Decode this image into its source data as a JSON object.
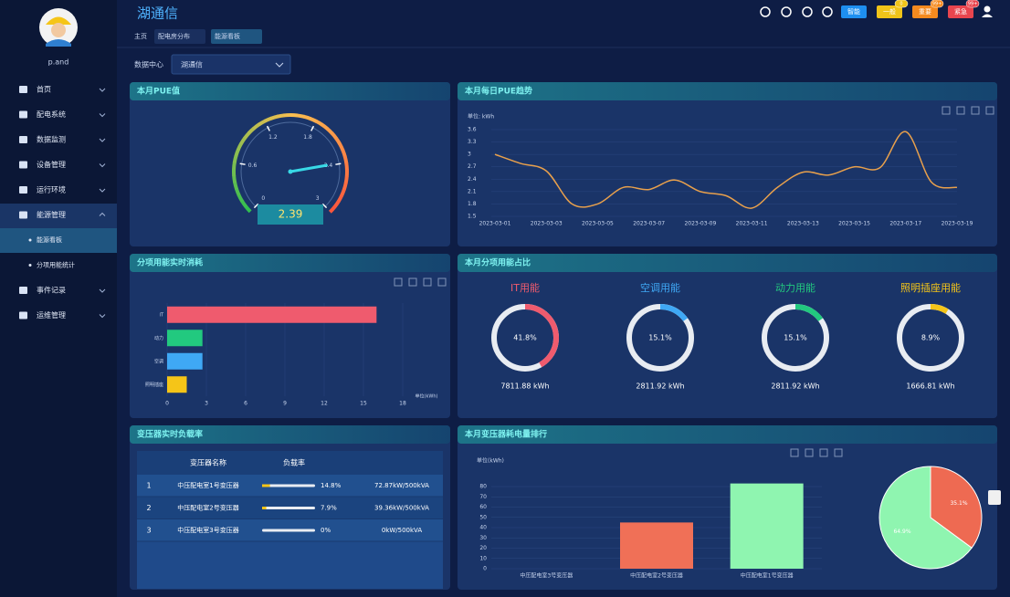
{
  "header": {
    "title": "湖通信",
    "tabs": [
      "主页",
      "配电房分布",
      "能源看板"
    ],
    "buttons": [
      {
        "label": "智能"
      },
      {
        "label": "一般",
        "badge": "0"
      },
      {
        "label": "重要",
        "badge": "99+"
      },
      {
        "label": "紧急",
        "badge": "99+"
      }
    ]
  },
  "sidebar": {
    "user": "p.and",
    "menu": [
      {
        "label": "首页"
      },
      {
        "label": "配电系统"
      },
      {
        "label": "数据监测"
      },
      {
        "label": "设备管理"
      },
      {
        "label": "运行环境"
      },
      {
        "label": "能源管理",
        "children": [
          "能源看板",
          "分项用能统计"
        ]
      },
      {
        "label": "事件记录"
      },
      {
        "label": "运维管理"
      }
    ]
  },
  "filter": {
    "label": "数据中心",
    "value": "湖通信"
  },
  "table": {
    "title": "变压器实时负载率",
    "columns": [
      "变压器名称",
      "负载率"
    ],
    "rows": [
      {
        "index": "1",
        "name": "中压配电室1号变压器",
        "load": 14.8,
        "load_label": "14.8%",
        "capacity": "72.87kW/500kVA"
      },
      {
        "index": "2",
        "name": "中压配电室2号变压器",
        "load": 7.9,
        "load_label": "7.9%",
        "capacity": "39.36kW/500kVA"
      },
      {
        "index": "3",
        "name": "中压配电室3号变压器",
        "load": 0,
        "load_label": "0%",
        "capacity": "0kW/500kVA"
      }
    ]
  },
  "chart_data": [
    {
      "type": "gauge",
      "title": "本月PUE值",
      "value": 2.39,
      "ylim": [
        0,
        3
      ],
      "yticks": [
        0,
        0.6,
        1.2,
        1.8,
        2.4,
        3
      ]
    },
    {
      "type": "line",
      "title": "本月每日PUE趋势",
      "y_label": "单位: kWh",
      "color": "#e8a04c",
      "categories": [
        "2023-03-01",
        null,
        "2023-03-03",
        null,
        "2023-03-05",
        null,
        "2023-03-07",
        null,
        "2023-03-09",
        null,
        "2023-03-11",
        null,
        "2023-03-13",
        null,
        "2023-03-15",
        null,
        "2023-03-17",
        null,
        "2023-03-19"
      ],
      "values": [
        3.0,
        2.78,
        2.6,
        1.8,
        1.8,
        2.2,
        2.15,
        2.38,
        2.1,
        2.0,
        1.7,
        2.2,
        2.57,
        2.5,
        2.7,
        2.68,
        3.55,
        2.33,
        2.2
      ],
      "ylim": [
        1.5,
        3.6
      ],
      "yticks": [
        1.5,
        1.8,
        2.1,
        2.4,
        2.7,
        3,
        3.3,
        3.6
      ]
    },
    {
      "type": "hbar",
      "title": "分项用能实时消耗",
      "x_label": "单位(kWh)",
      "categories": [
        "IT",
        "动力",
        "空调",
        "照明插座"
      ],
      "values": [
        16,
        2.7,
        2.7,
        1.5
      ],
      "colors": [
        "#ef5b6e",
        "#22c97f",
        "#3fa8f5",
        "#f5c518"
      ],
      "xlim": [
        0,
        18
      ],
      "xticks": [
        0,
        3,
        6,
        9,
        12,
        15,
        18
      ]
    },
    {
      "type": "donut",
      "title": "本月分项用能占比",
      "categories": [
        "IT用能",
        "空调用能",
        "动力用能",
        "照明插座用能"
      ],
      "colors": [
        "#ef5b6e",
        "#3fa8f5",
        "#22c97f",
        "#f5c518"
      ],
      "values": [
        41.8,
        15.1,
        15.1,
        8.9
      ],
      "value_labels": [
        "41.8%",
        "15.1%",
        "15.1%",
        "8.9%"
      ],
      "amounts": [
        "7811.88 kWh",
        "2811.92 kWh",
        "2811.92 kWh",
        "1666.81 kWh"
      ]
    },
    {
      "type": "bar",
      "title": "本月变压器耗电量排行",
      "y_label": "单位(kWh)",
      "categories": [
        "中压配电室3号变压器",
        "中压配电室2号变压器",
        "中压配电室1号变压器"
      ],
      "values": [
        0,
        45,
        83
      ],
      "colors": [
        "#f07057",
        "#f07057",
        "#8ff5b0"
      ],
      "ylim": [
        0,
        85
      ],
      "yticks": [
        0,
        10,
        20,
        30,
        40,
        50,
        60,
        70,
        80
      ]
    },
    {
      "type": "pie",
      "values": [
        35.1,
        64.9
      ],
      "value_labels": [
        "35.1%",
        "64.9%"
      ],
      "colors": [
        "#ee6a52",
        "#8ff5b0"
      ]
    }
  ]
}
